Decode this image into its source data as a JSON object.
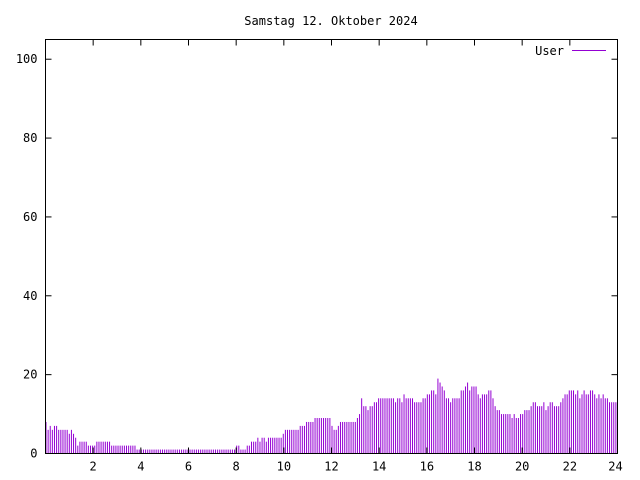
{
  "chart_data": {
    "type": "bar",
    "title": "Samstag 12. Oktober 2024",
    "xlabel": "",
    "ylabel": "",
    "xlim": [
      0,
      24
    ],
    "ylim": [
      0,
      105
    ],
    "x_ticks": [
      2,
      4,
      6,
      8,
      10,
      12,
      14,
      16,
      18,
      20,
      22,
      24
    ],
    "y_ticks": [
      0,
      20,
      40,
      60,
      80,
      100
    ],
    "grid": false,
    "legend": "top-right",
    "series": [
      {
        "name": "User",
        "color": "#9400d3",
        "values": [
          8,
          6,
          7,
          6,
          7,
          7,
          6,
          6,
          6,
          6,
          6,
          5,
          6,
          5,
          4,
          2,
          3,
          3,
          3,
          3,
          2,
          2,
          2,
          2,
          3,
          3,
          3,
          3,
          3,
          3,
          3,
          2,
          2,
          2,
          2,
          2,
          2,
          2,
          2,
          2,
          2,
          2,
          2,
          1,
          1,
          1,
          1,
          1,
          1,
          1,
          1,
          1,
          1,
          1,
          1,
          1,
          1,
          1,
          1,
          1,
          1,
          1,
          1,
          1,
          1,
          1,
          1,
          1,
          1,
          1,
          1,
          1,
          1,
          1,
          1,
          1,
          1,
          1,
          1,
          1,
          1,
          1,
          1,
          1,
          1,
          1,
          1,
          1,
          1,
          1,
          2,
          2,
          1,
          1,
          1,
          2,
          2,
          3,
          3,
          3,
          4,
          3,
          4,
          4,
          3,
          4,
          4,
          4,
          4,
          4,
          4,
          4,
          5,
          6,
          6,
          6,
          6,
          6,
          6,
          6,
          7,
          7,
          7,
          8,
          8,
          8,
          8,
          9,
          9,
          9,
          9,
          9,
          9,
          9,
          9,
          7,
          6,
          6,
          7,
          8,
          8,
          8,
          8,
          8,
          8,
          8,
          8,
          9,
          10,
          14,
          12,
          12,
          11,
          12,
          12,
          13,
          13,
          14,
          14,
          14,
          14,
          14,
          14,
          14,
          14,
          13,
          14,
          14,
          13,
          15,
          14,
          14,
          14,
          14,
          13,
          13,
          13,
          13,
          14,
          14,
          15,
          15,
          16,
          16,
          15,
          19,
          18,
          17,
          16,
          14,
          14,
          13,
          14,
          14,
          14,
          14,
          16,
          16,
          17,
          18,
          16,
          17,
          17,
          17,
          15,
          14,
          15,
          15,
          15,
          16,
          16,
          14,
          12,
          11,
          11,
          10,
          10,
          10,
          10,
          10,
          9,
          10,
          9,
          9,
          10,
          10,
          11,
          11,
          11,
          12,
          13,
          13,
          12,
          12,
          12,
          13,
          11,
          12,
          13,
          13,
          12,
          12,
          12,
          13,
          14,
          15,
          15,
          16,
          16,
          16,
          15,
          16,
          14,
          15,
          16,
          15,
          15,
          16,
          16,
          15,
          14,
          15,
          14,
          15,
          14,
          14,
          13,
          13,
          13,
          13
        ]
      }
    ]
  }
}
